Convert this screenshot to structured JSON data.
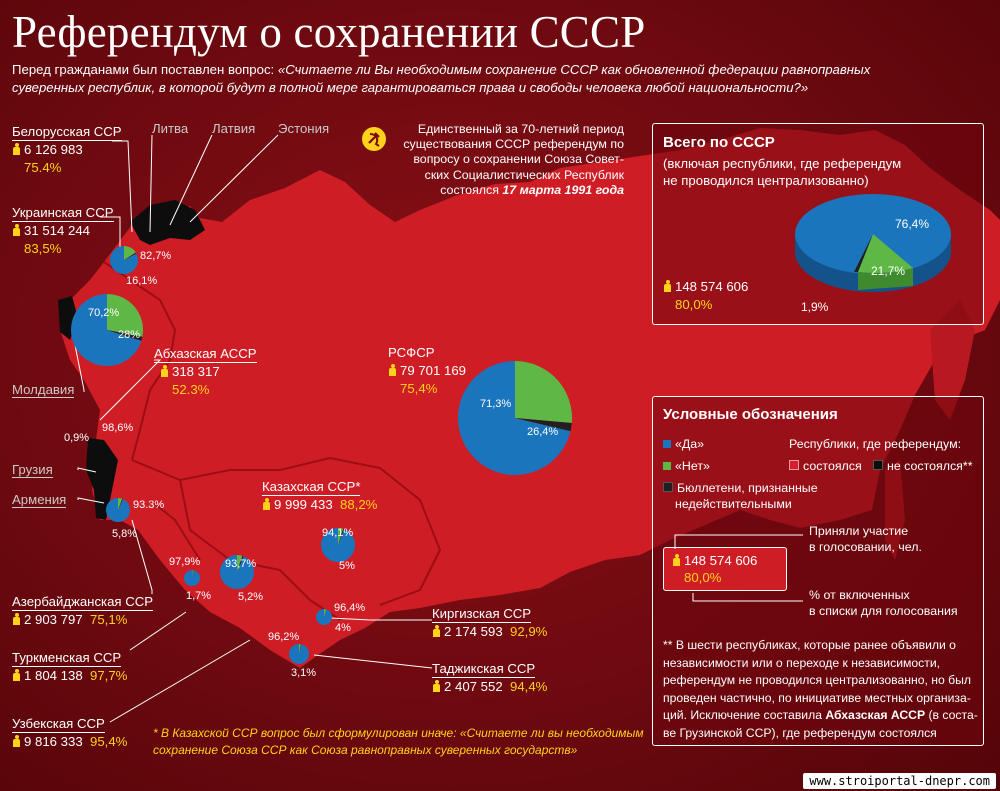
{
  "header": {
    "title": "Референдум о сохранении СССР",
    "question_intro": "Перед гражданами был поставлен вопрос: ",
    "question_line1": "«Считаете ли Вы необходимым сохранение СССР как обновленной федерации равноправных",
    "question_line2": "суверенных республик, в которой будут в полной мере гарантироваться права и свободы человека любой национальности?»"
  },
  "intro_note": {
    "line1": "Единственный за 70-летний период",
    "line2": "существования СССР референдум по",
    "line3": "вопросу о сохранении Союза Совет-",
    "line4": "ских Социалистических Республик",
    "line5_prefix": "состоялся ",
    "line5_date": "17 марта 1991 года"
  },
  "colors": {
    "yes": "#1b75bc",
    "no": "#5fb846",
    "invalid": "#231f20",
    "held": "#d71e2a",
    "not_held": "#0d0d0d",
    "pct_text": "#ffd21a"
  },
  "regions": {
    "belarus": {
      "name": "Белорусская ССР",
      "count": "6 126 983",
      "pct": "75.4%"
    },
    "ukraine": {
      "name": "Украинская ССР",
      "count": "31 514 244",
      "pct": "83,5%"
    },
    "abkhazia": {
      "name": "Абхазская АССР",
      "count": "318 317",
      "pct": "52.3%"
    },
    "rsfsr": {
      "name": "РСФСР",
      "count": "79 701 169",
      "pct": "75,4%"
    },
    "kazakhstan": {
      "name": "Казахская ССР*",
      "count": "9 999 433",
      "pct": "88,2%"
    },
    "azerbaijan": {
      "name": "Азербайджанская ССР",
      "count": "2 903 797",
      "pct": "75,1%"
    },
    "turkmenistan": {
      "name": "Туркменская ССР",
      "count": "1 804 138",
      "pct": "97,7%"
    },
    "uzbekistan": {
      "name": "Узбекская ССР",
      "count": "9 816 333",
      "pct": "95,4%"
    },
    "kyrgyzstan": {
      "name": "Киргизская ССР",
      "count": "2 174 593",
      "pct": "92,9%"
    },
    "tajikistan": {
      "name": "Таджикская ССР",
      "count": "2 407 552",
      "pct": "94,4%"
    }
  },
  "not_held": {
    "lithuania": "Литва",
    "latvia": "Латвия",
    "estonia": "Эстония",
    "moldova": "Молдавия",
    "georgia": "Грузия",
    "armenia": "Армения"
  },
  "map_labels": {
    "belarus_yes": "82,7%",
    "belarus_no": "16,1%",
    "ukraine_yes": "70,2%",
    "ukraine_no": "28%",
    "abkhazia_yes": "98,6%",
    "abkhazia_invalid": "0,9%",
    "rsfsr_yes": "71,3%",
    "rsfsr_no": "26,4%",
    "azerbaijan_yes": "93.3%",
    "azerbaijan_no": "5,8%",
    "kazakhstan_yes": "94,1%",
    "kazakhstan_no": "5%",
    "turkmenistan_yes": "97,9%",
    "turkmenistan_no": "1,7%",
    "uzbekistan_yes": "93,7%",
    "uzbekistan_no": "5,2%",
    "kyrgyzstan_yes": "96,4%",
    "kyrgyzstan_no": "4%",
    "tajikistan_yes": "96,2%",
    "tajikistan_no": "3,1%"
  },
  "pie_values": {
    "belarus": [
      82.7,
      16.1
    ],
    "ukraine": [
      70.2,
      28.0
    ],
    "rsfsr": [
      71.3,
      26.4
    ],
    "azerbaijan": [
      93.3,
      5.8
    ],
    "kazakhstan": [
      94.1,
      5.0
    ],
    "turkmenistan": [
      97.9,
      1.7
    ],
    "uzbekistan": [
      93.7,
      5.2
    ],
    "kyrgyzstan": [
      96.4,
      4.0
    ],
    "tajikistan": [
      96.2,
      3.1
    ],
    "ussr": [
      76.4,
      21.7,
      1.9
    ]
  },
  "total": {
    "title": "Всего по СССР",
    "subtitle1": "(включая республики, где референдум",
    "subtitle2": "не проводился централизованно)",
    "count": "148 574 606",
    "pct": "80,0%",
    "yes": "76,4%",
    "no": "21,7%",
    "invalid": "1,9%"
  },
  "legend": {
    "title": "Условные обозначения",
    "yes": "«Да»",
    "no": "«Нет»",
    "invalid1": "Бюллетени, признанные",
    "invalid2": "недействительными",
    "republics": "Республики, где референдум:",
    "held": "состоялся",
    "not_held": "не состоялся**",
    "example_count": "148 574 606",
    "example_pct": "80,0%",
    "participated1": "Приняли участие",
    "participated2": "в голосовании, чел.",
    "share1": "% от включенных",
    "share2": "в списки для голосования",
    "note1": "** В шести республиках, которые ранее объявили о",
    "note2": "независимости или о переходе к независимости,",
    "note3": "референдум не проводился централизованно, но был",
    "note4": "проведен частично, по инициативе местных организа-",
    "note5_prefix": "ций. Исключение составила ",
    "note5_bold": "Абхазская АССР",
    "note5_suffix": " (в соста-",
    "note6": "ве Грузинской ССР), где референдум состоялся"
  },
  "footnote": {
    "line1": "* В Казахской ССР вопрос был сформулирован иначе: «Считаете ли вы необходимым",
    "line2": "сохранение Союза ССР как Союза равноправных суверенных государств»"
  },
  "watermark": "www.stroiportal-dnepr.com"
}
